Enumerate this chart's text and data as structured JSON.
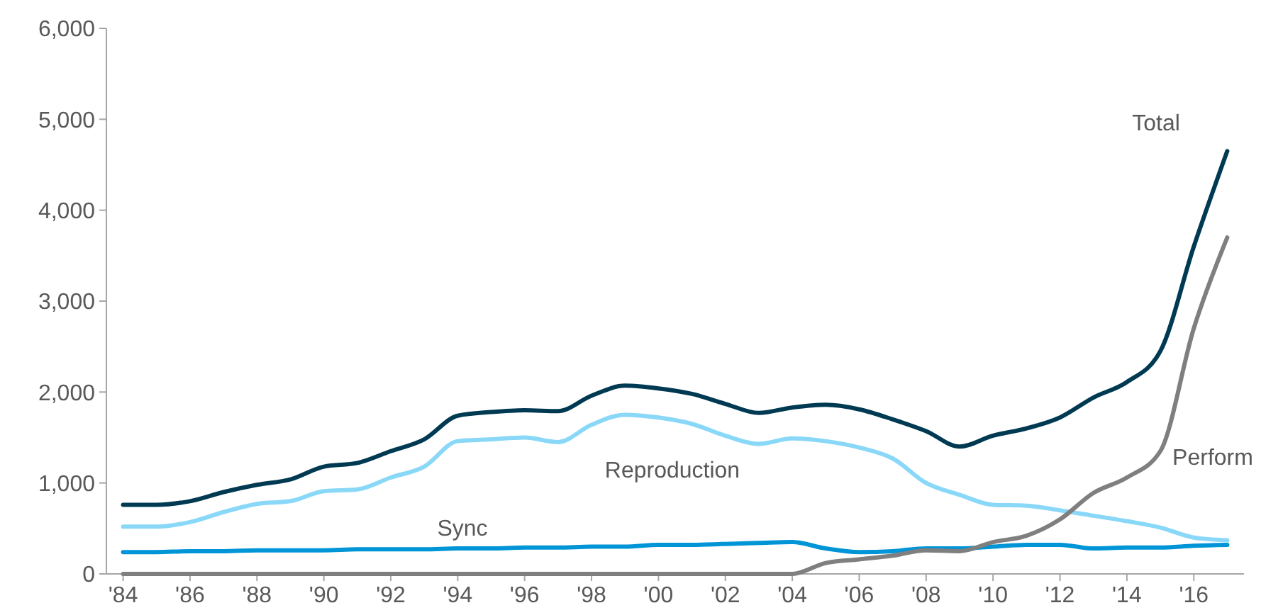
{
  "chart_data": {
    "type": "line",
    "x": [
      1984,
      1985,
      1986,
      1987,
      1988,
      1989,
      1990,
      1991,
      1992,
      1993,
      1994,
      1995,
      1996,
      1997,
      1998,
      1999,
      2000,
      2001,
      2002,
      2003,
      2004,
      2005,
      2006,
      2007,
      2008,
      2009,
      2010,
      2011,
      2012,
      2013,
      2014,
      2015,
      2016,
      2017
    ],
    "xlim": [
      1983.5,
      2017.5
    ],
    "xticks": [
      {
        "value": 1984,
        "label": "'84"
      },
      {
        "value": 1986,
        "label": "'86"
      },
      {
        "value": 1988,
        "label": "'88"
      },
      {
        "value": 1990,
        "label": "'90"
      },
      {
        "value": 1992,
        "label": "'92"
      },
      {
        "value": 1994,
        "label": "'94"
      },
      {
        "value": 1996,
        "label": "'96"
      },
      {
        "value": 1998,
        "label": "'98"
      },
      {
        "value": 2000,
        "label": "'00"
      },
      {
        "value": 2002,
        "label": "'02"
      },
      {
        "value": 2004,
        "label": "'04"
      },
      {
        "value": 2006,
        "label": "'06"
      },
      {
        "value": 2008,
        "label": "'08"
      },
      {
        "value": 2010,
        "label": "'10"
      },
      {
        "value": 2012,
        "label": "'12"
      },
      {
        "value": 2014,
        "label": "'14"
      },
      {
        "value": 2016,
        "label": "'16"
      }
    ],
    "ylim": [
      0,
      6000
    ],
    "yticks": [
      {
        "value": 0,
        "label": "0"
      },
      {
        "value": 1000,
        "label": "1,000"
      },
      {
        "value": 2000,
        "label": "2,000"
      },
      {
        "value": 3000,
        "label": "3,000"
      },
      {
        "value": 4000,
        "label": "4,000"
      },
      {
        "value": 5000,
        "label": "5,000"
      },
      {
        "value": 6000,
        "label": "6,000"
      }
    ],
    "grid": false,
    "marker": "none",
    "line_style": "solid",
    "series": [
      {
        "name": "Total",
        "color": "#003a52",
        "values": [
          760,
          760,
          800,
          900,
          980,
          1040,
          1180,
          1220,
          1350,
          1480,
          1740,
          1780,
          1800,
          1790,
          1960,
          2070,
          2040,
          1980,
          1870,
          1770,
          1830,
          1860,
          1810,
          1700,
          1570,
          1400,
          1520,
          1600,
          1720,
          1940,
          2110,
          2450,
          3600,
          4650
        ]
      },
      {
        "name": "Reproduction",
        "color": "#8ad8f8",
        "values": [
          520,
          520,
          570,
          680,
          770,
          800,
          910,
          930,
          1060,
          1180,
          1460,
          1480,
          1500,
          1450,
          1640,
          1750,
          1720,
          1650,
          1520,
          1430,
          1490,
          1460,
          1390,
          1270,
          1000,
          870,
          760,
          750,
          700,
          640,
          580,
          510,
          400,
          370
        ]
      },
      {
        "name": "Sync",
        "color": "#0095d6",
        "values": [
          240,
          240,
          250,
          250,
          260,
          260,
          260,
          270,
          270,
          270,
          280,
          280,
          290,
          290,
          300,
          300,
          320,
          320,
          330,
          340,
          350,
          280,
          240,
          250,
          280,
          280,
          300,
          320,
          320,
          280,
          290,
          290,
          310,
          320
        ]
      },
      {
        "name": "Perform",
        "color": "#7f7f7f",
        "values": [
          0,
          0,
          0,
          0,
          0,
          0,
          0,
          0,
          0,
          0,
          0,
          0,
          0,
          0,
          0,
          0,
          0,
          0,
          0,
          0,
          0,
          120,
          160,
          200,
          260,
          250,
          350,
          420,
          600,
          890,
          1060,
          1350,
          2700,
          3700
        ]
      }
    ]
  }
}
